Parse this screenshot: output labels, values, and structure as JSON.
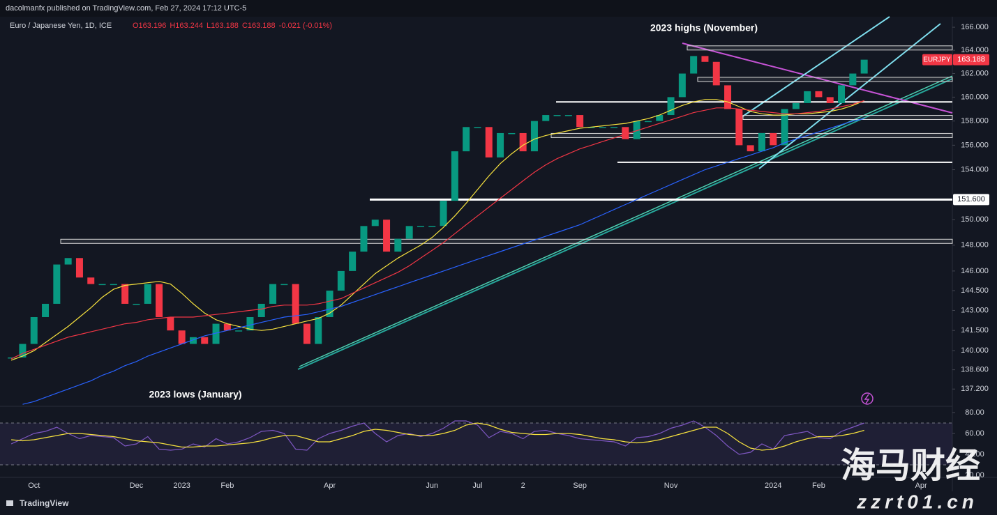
{
  "header": {
    "publisher": "dacolmanfx published on TradingView.com, Feb 27, 2024 17:12 UTC-5",
    "symbol": "Euro / Japanese Yen, 1D, ICE",
    "quote": [
      "O163.196",
      "H163.244",
      "L163.188",
      "C163.188",
      "-0.021 (-0.01%)"
    ]
  },
  "chart_data": {
    "type": "candlestick",
    "log": true,
    "grid": false,
    "categories": [
      null,
      null,
      "Oct",
      null,
      null,
      null,
      null,
      null,
      null,
      null,
      null,
      "Dec",
      null,
      null,
      null,
      "2023",
      null,
      null,
      null,
      "Feb",
      null,
      null,
      null,
      null,
      null,
      null,
      null,
      null,
      "Apr",
      null,
      null,
      null,
      null,
      null,
      null,
      null,
      null,
      "Jun",
      null,
      null,
      null,
      "Jul",
      null,
      null,
      null,
      "2",
      null,
      null,
      null,
      null,
      "Sep",
      null,
      null,
      null,
      null,
      null,
      null,
      null,
      "Nov",
      null,
      null,
      null,
      null,
      null,
      null,
      null,
      null,
      "2024",
      null,
      null,
      null,
      "Feb",
      null,
      null,
      null,
      null,
      null,
      null,
      null,
      null,
      "Apr",
      null,
      null
    ],
    "ylim": [
      135.96,
      166.86
    ],
    "yticks": [
      {
        "value": 166,
        "label": "166.000"
      },
      {
        "value": 164,
        "label": "164.000"
      },
      {
        "value": 162,
        "label": "162.000"
      },
      {
        "value": 160,
        "label": "160.000"
      },
      {
        "value": 158,
        "label": "158.000"
      },
      {
        "value": 156,
        "label": "156.000"
      },
      {
        "value": 154,
        "label": "154.000"
      },
      {
        "value": 150,
        "label": "150.000"
      },
      {
        "value": 148,
        "label": "148.000"
      },
      {
        "value": 146,
        "label": "146.000"
      },
      {
        "value": 144.5,
        "label": "144.500"
      },
      {
        "value": 143,
        "label": "143.000"
      },
      {
        "value": 141.5,
        "label": "141.500"
      },
      {
        "value": 140,
        "label": "140.000"
      },
      {
        "value": 138.6,
        "label": "138.600"
      },
      {
        "value": 137.2,
        "label": "137.200"
      }
    ],
    "series": [
      {
        "type": "candlestick",
        "color_up": "#089981",
        "color_down": "#f23645",
        "values": [
          139.5,
          140.5,
          142.5,
          143.5,
          146.5,
          147,
          145.5,
          145,
          145,
          145,
          143.5,
          143.5,
          145,
          142.5,
          141.5,
          140.5,
          141,
          140.5,
          142,
          141.5,
          141.5,
          142.5,
          143.5,
          145,
          145,
          142,
          140.5,
          142.5,
          144.5,
          146,
          147.5,
          149.5,
          150,
          147.5,
          148.5,
          149.5,
          149.5,
          149.5,
          151.5,
          155.5,
          157.5,
          157.5,
          155,
          157,
          157,
          155.5,
          158,
          158.5,
          158.5,
          158.5,
          157.5,
          157.5,
          157.5,
          157.5,
          156.5,
          158,
          158,
          158.5,
          160,
          162,
          163.5,
          163,
          161,
          159,
          156,
          155.5,
          157,
          156,
          159,
          159.5,
          160.5,
          160,
          159.5,
          161,
          162,
          163.188,
          null,
          null,
          null,
          null,
          null,
          null,
          null
        ]
      },
      {
        "type": "line",
        "color": "#f7e23e",
        "values": [
          139.3,
          139.6,
          140,
          140.6,
          141.2,
          141.8,
          142.5,
          143.2,
          144,
          144.6,
          144.9,
          145,
          145.1,
          145.2,
          145,
          144.3,
          143.5,
          142.8,
          142.3,
          142,
          141.8,
          141.6,
          141.5,
          141.6,
          141.8,
          142,
          142.2,
          142.4,
          142.8,
          143.4,
          144.2,
          145,
          145.8,
          146.4,
          147,
          147.5,
          148,
          148.6,
          149.4,
          150.3,
          151.3,
          152.4,
          153.5,
          154.5,
          155.3,
          156,
          156.5,
          156.8,
          157,
          157.2,
          157.4,
          157.5,
          157.6,
          157.7,
          157.8,
          158,
          158.2,
          158.5,
          158.9,
          159.3,
          159.6,
          159.8,
          159.8,
          159.6,
          159.2,
          158.8,
          158.6,
          158.5,
          158.5,
          158.6,
          158.6,
          158.7,
          158.8,
          159,
          159.3,
          159.7,
          null,
          null,
          null,
          null,
          null,
          null,
          null
        ]
      },
      {
        "type": "line",
        "color": "#f23645",
        "values": [
          139.4,
          139.8,
          140.1,
          140.4,
          140.7,
          141,
          141.2,
          141.4,
          141.6,
          141.8,
          142,
          142.1,
          142.3,
          142.4,
          142.5,
          142.5,
          142.5,
          142.6,
          142.7,
          142.8,
          142.9,
          143,
          143.1,
          143.3,
          143.4,
          143.4,
          143.4,
          143.5,
          143.7,
          143.9,
          144.3,
          144.7,
          145.1,
          145.5,
          145.9,
          146.4,
          147,
          147.6,
          148.2,
          148.9,
          149.6,
          150.3,
          151,
          151.7,
          152.4,
          153.1,
          153.8,
          154.4,
          154.9,
          155.3,
          155.7,
          156,
          156.3,
          156.6,
          156.9,
          157.2,
          157.5,
          157.8,
          158.1,
          158.4,
          158.7,
          158.9,
          159.1,
          159.1,
          159,
          158.9,
          158.8,
          158.7,
          158.6,
          158.6,
          158.7,
          158.8,
          159,
          159.2,
          159.4,
          159.7,
          null,
          null,
          null,
          null,
          null,
          null,
          null
        ]
      },
      {
        "type": "line",
        "color": "#2962ff",
        "values": [
          null,
          136.1,
          136.3,
          136.6,
          136.9,
          137.2,
          137.5,
          137.8,
          138.2,
          138.5,
          138.9,
          139.2,
          139.6,
          139.9,
          140.2,
          140.5,
          140.8,
          141.1,
          141.3,
          141.5,
          141.7,
          141.9,
          142.1,
          142.3,
          142.5,
          142.6,
          142.7,
          142.9,
          143.1,
          143.3,
          143.6,
          143.9,
          144.2,
          144.5,
          144.8,
          145.1,
          145.4,
          145.7,
          146,
          146.3,
          146.6,
          146.9,
          147.2,
          147.5,
          147.8,
          148.1,
          148.4,
          148.7,
          149,
          149.3,
          149.6,
          150,
          150.4,
          150.8,
          151.2,
          151.6,
          152,
          152.4,
          152.8,
          153.2,
          153.6,
          154,
          154.3,
          154.6,
          154.9,
          155.2,
          155.5,
          155.8,
          156.2,
          156.5,
          156.8,
          157.1,
          157.4,
          157.7,
          158,
          158.2,
          null,
          null,
          null,
          null,
          null,
          null,
          null
        ]
      }
    ],
    "levels": [
      {
        "value": 164.2,
        "style": "box"
      },
      {
        "value": 161.5,
        "style": "box"
      },
      {
        "value": 159.6,
        "style": "line"
      },
      {
        "value": 158.3,
        "style": "box"
      },
      {
        "value": 156.8,
        "style": "box"
      },
      {
        "value": 154.6,
        "style": "line"
      },
      {
        "value": 148.3,
        "style": "box"
      }
    ],
    "price_line": {
      "value": 151.6,
      "label": "151.600"
    },
    "last_price": {
      "symbol": "EURJPY",
      "value": 163.188,
      "label": "163.188"
    },
    "annotations": [
      "2023 highs (November)",
      "2023 lows (January)"
    ],
    "rsi": {
      "ylim": [
        18,
        86
      ],
      "band": [
        30,
        70
      ],
      "yticks": [
        {
          "value": 80,
          "label": "80.00"
        },
        {
          "value": 60,
          "label": "60.00"
        },
        {
          "value": 40,
          "label": "40.00"
        },
        {
          "value": 20,
          "label": "20.00"
        }
      ],
      "series": [
        {
          "color": "#7e57c2",
          "values": [
            50,
            55,
            60,
            62,
            66,
            60,
            55,
            58,
            57,
            56,
            48,
            50,
            57,
            45,
            44,
            45,
            50,
            47,
            55,
            50,
            52,
            56,
            62,
            63,
            60,
            45,
            44,
            55,
            60,
            63,
            67,
            70,
            60,
            52,
            58,
            60,
            57,
            60,
            65,
            72,
            72,
            68,
            56,
            62,
            60,
            55,
            62,
            63,
            60,
            58,
            55,
            54,
            53,
            52,
            48,
            56,
            57,
            60,
            65,
            68,
            72,
            66,
            58,
            48,
            40,
            42,
            50,
            45,
            58,
            60,
            62,
            56,
            55,
            62,
            66,
            70,
            null,
            null,
            null,
            null,
            null,
            null,
            null
          ]
        },
        {
          "color": "#f7e23e",
          "values": [
            54,
            53,
            54,
            56,
            58,
            60,
            60,
            59,
            58,
            57,
            55,
            53,
            52,
            51,
            49,
            47,
            47,
            48,
            48,
            49,
            50,
            51,
            53,
            56,
            58,
            58,
            55,
            52,
            52,
            55,
            58,
            62,
            64,
            63,
            61,
            59,
            58,
            58,
            60,
            63,
            68,
            70,
            68,
            64,
            61,
            60,
            59,
            59,
            60,
            60,
            59,
            57,
            55,
            54,
            52,
            51,
            52,
            54,
            57,
            60,
            63,
            66,
            66,
            60,
            52,
            46,
            44,
            45,
            48,
            52,
            55,
            57,
            57,
            58,
            60,
            63,
            null,
            null,
            null,
            null,
            null,
            null,
            null
          ]
        }
      ]
    }
  },
  "watermark": [
    "海马财经",
    "zzrt01.cn"
  ],
  "footer": "TradingView"
}
